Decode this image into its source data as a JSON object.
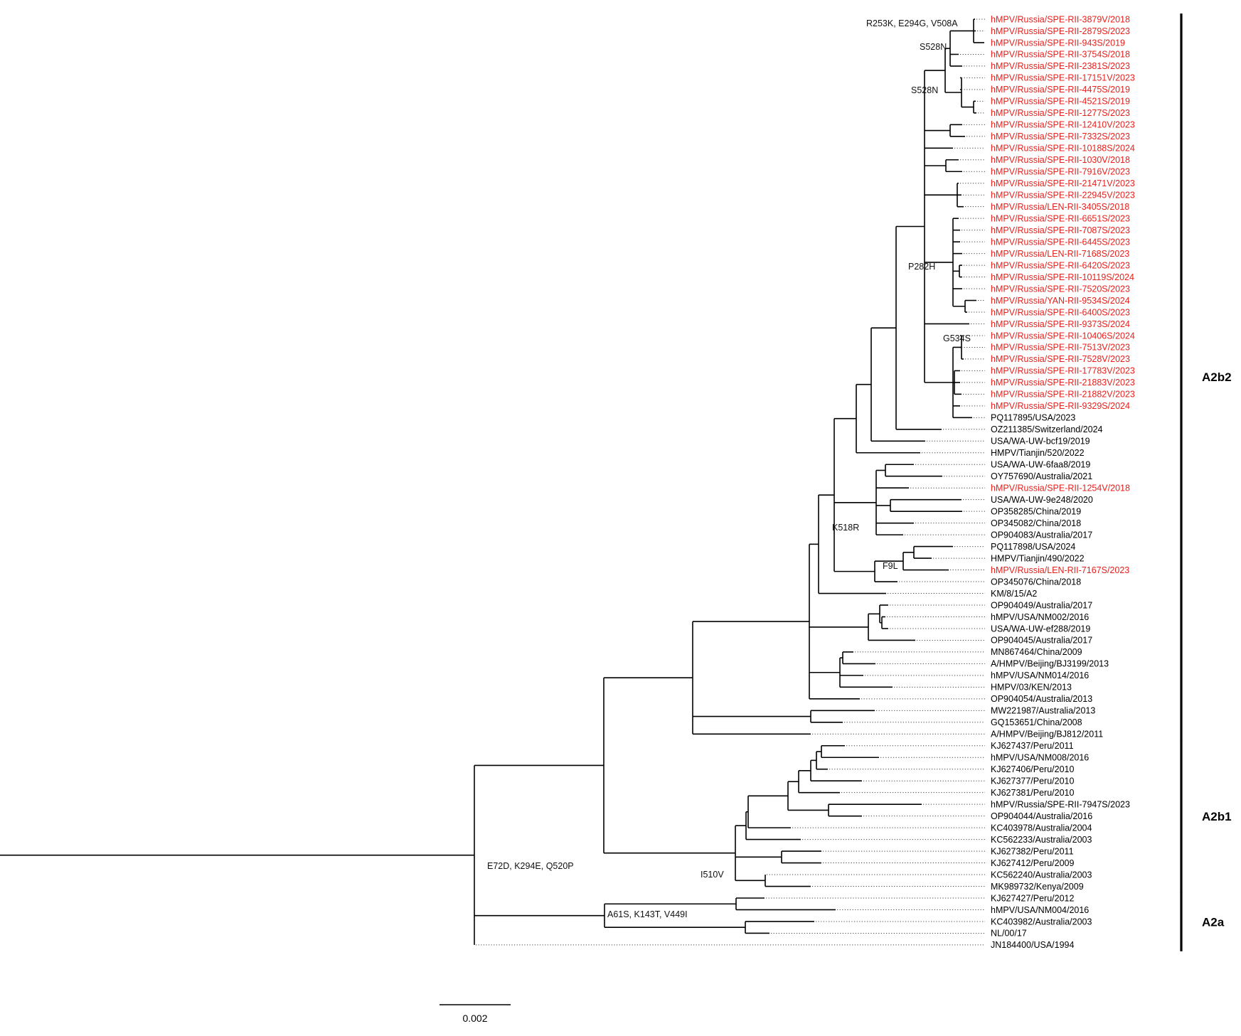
{
  "figure": {
    "type": "phylogenetic_tree",
    "highlight_color": "#e8201c",
    "default_color": "#000000",
    "scale_bar": {
      "value": 0.002,
      "label": "0.002"
    }
  },
  "chart_data": {
    "type": "tree",
    "title": "",
    "scale_bar_label": "0.002",
    "leaves": [
      {
        "label": "hMPV/Russia/SPE-RII-3879V/2018",
        "highlight": true
      },
      {
        "label": "hMPV/Russia/SPE-RII-2879S/2023",
        "highlight": true
      },
      {
        "label": "hMPV/Russia/SPE-RII-943S/2019",
        "highlight": true
      },
      {
        "label": "hMPV/Russia/SPE-RII-3754S/2018",
        "highlight": true
      },
      {
        "label": "hMPV/Russia/SPE-RII-2381S/2023",
        "highlight": true
      },
      {
        "label": "hMPV/Russia/SPE-RII-17151V/2023",
        "highlight": true
      },
      {
        "label": "hMPV/Russia/SPE-RII-4475S/2019",
        "highlight": true
      },
      {
        "label": "hMPV/Russia/SPE-RII-4521S/2019",
        "highlight": true
      },
      {
        "label": "hMPV/Russia/SPE-RII-1277S/2023",
        "highlight": true
      },
      {
        "label": "hMPV/Russia/SPE-RII-12410V/2023",
        "highlight": true
      },
      {
        "label": "hMPV/Russia/SPE-RII-7332S/2023",
        "highlight": true
      },
      {
        "label": "hMPV/Russia/SPE-RII-10188S/2024",
        "highlight": true
      },
      {
        "label": "hMPV/Russia/SPE-RII-1030V/2018",
        "highlight": true
      },
      {
        "label": "hMPV/Russia/SPE-RII-7916V/2023",
        "highlight": true
      },
      {
        "label": "hMPV/Russia/SPE-RII-21471V/2023",
        "highlight": true
      },
      {
        "label": "hMPV/Russia/SPE-RII-22945V/2023",
        "highlight": true
      },
      {
        "label": "hMPV/Russia/LEN-RII-3405S/2018",
        "highlight": true
      },
      {
        "label": "hMPV/Russia/SPE-RII-6651S/2023",
        "highlight": true
      },
      {
        "label": "hMPV/Russia/SPE-RII-7087S/2023",
        "highlight": true
      },
      {
        "label": "hMPV/Russia/SPE-RII-6445S/2023",
        "highlight": true
      },
      {
        "label": "hMPV/Russia/LEN-RII-7168S/2023",
        "highlight": true
      },
      {
        "label": "hMPV/Russia/SPE-RII-6420S/2023",
        "highlight": true
      },
      {
        "label": "hMPV/Russia/SPE-RII-10119S/2024",
        "highlight": true
      },
      {
        "label": "hMPV/Russia/SPE-RII-7520S/2023",
        "highlight": true
      },
      {
        "label": "hMPV/Russia/YAN-RII-9534S/2024",
        "highlight": true
      },
      {
        "label": "hMPV/Russia/SPE-RII-6400S/2023",
        "highlight": true
      },
      {
        "label": "hMPV/Russia/SPE-RII-9373S/2024",
        "highlight": true
      },
      {
        "label": "hMPV/Russia/SPE-RII-10406S/2024",
        "highlight": true
      },
      {
        "label": "hMPV/Russia/SPE-RII-7513V/2023",
        "highlight": true
      },
      {
        "label": "hMPV/Russia/SPE-RII-7528V/2023",
        "highlight": true
      },
      {
        "label": "hMPV/Russia/SPE-RII-17783V/2023",
        "highlight": true
      },
      {
        "label": "hMPV/Russia/SPE-RII-21883V/2023",
        "highlight": true
      },
      {
        "label": "hMPV/Russia/SPE-RII-21882V/2023",
        "highlight": true
      },
      {
        "label": "hMPV/Russia/SPE-RII-9329S/2024",
        "highlight": true
      },
      {
        "label": "PQ117895/USA/2023",
        "highlight": false
      },
      {
        "label": "OZ211385/Switzerland/2024",
        "highlight": false
      },
      {
        "label": "USA/WA-UW-bcf19/2019",
        "highlight": false
      },
      {
        "label": "HMPV/Tianjin/520/2022",
        "highlight": false
      },
      {
        "label": "USA/WA-UW-6faa8/2019",
        "highlight": false
      },
      {
        "label": "OY757690/Australia/2021",
        "highlight": false
      },
      {
        "label": "hMPV/Russia/SPE-RII-1254V/2018",
        "highlight": true
      },
      {
        "label": "USA/WA-UW-9e248/2020",
        "highlight": false
      },
      {
        "label": "OP358285/China/2019",
        "highlight": false
      },
      {
        "label": "OP345082/China/2018",
        "highlight": false
      },
      {
        "label": "OP904083/Australia/2017",
        "highlight": false
      },
      {
        "label": "PQ117898/USA/2024",
        "highlight": false
      },
      {
        "label": "HMPV/Tianjin/490/2022",
        "highlight": false
      },
      {
        "label": "hMPV/Russia/LEN-RII-7167S/2023",
        "highlight": true
      },
      {
        "label": "OP345076/China/2018",
        "highlight": false
      },
      {
        "label": "KM/8/15/A2",
        "highlight": false
      },
      {
        "label": "OP904049/Australia/2017",
        "highlight": false
      },
      {
        "label": "hMPV/USA/NM002/2016",
        "highlight": false
      },
      {
        "label": "USA/WA-UW-ef288/2019",
        "highlight": false
      },
      {
        "label": "OP904045/Australia/2017",
        "highlight": false
      },
      {
        "label": "MN867464/China/2009",
        "highlight": false
      },
      {
        "label": "A/HMPV/Beijing/BJ3199/2013",
        "highlight": false
      },
      {
        "label": "hMPV/USA/NM014/2016",
        "highlight": false
      },
      {
        "label": "HMPV/03/KEN/2013",
        "highlight": false
      },
      {
        "label": "OP904054/Australia/2013",
        "highlight": false
      },
      {
        "label": "MW221987/Australia/2013",
        "highlight": false
      },
      {
        "label": "GQ153651/China/2008",
        "highlight": false
      },
      {
        "label": "A/HMPV/Beijing/BJ812/2011",
        "highlight": false
      },
      {
        "label": "KJ627437/Peru/2011",
        "highlight": false
      },
      {
        "label": "hMPV/USA/NM008/2016",
        "highlight": false
      },
      {
        "label": "KJ627406/Peru/2010",
        "highlight": false
      },
      {
        "label": "KJ627377/Peru/2010",
        "highlight": false
      },
      {
        "label": "KJ627381/Peru/2010",
        "highlight": false
      },
      {
        "label": "hMPV/Russia/SPE-RII-7947S/2023",
        "highlight": false
      },
      {
        "label": "OP904044/Australia/2016",
        "highlight": false
      },
      {
        "label": "KC403978/Australia/2004",
        "highlight": false
      },
      {
        "label": "KC562233/Australia/2003",
        "highlight": false
      },
      {
        "label": "KJ627382/Peru/2011",
        "highlight": false
      },
      {
        "label": "KJ627412/Peru/2009",
        "highlight": false
      },
      {
        "label": "KC562240/Australia/2003",
        "highlight": false
      },
      {
        "label": "MK989732/Kenya/2009",
        "highlight": false
      },
      {
        "label": "KJ627427/Peru/2012",
        "highlight": false
      },
      {
        "label": "hMPV/USA/NM004/2016",
        "highlight": false
      },
      {
        "label": "KC403982/Australia/2003",
        "highlight": false
      },
      {
        "label": "NL/00/17",
        "highlight": false
      },
      {
        "label": "JN184400/USA/1994",
        "highlight": false
      }
    ],
    "clades": [
      {
        "name": "A2b2",
        "first_leaf": 0,
        "last_leaf": 61
      },
      {
        "name": "A2b1",
        "first_leaf": 62,
        "last_leaf": 74
      },
      {
        "name": "A2a",
        "first_leaf": 75,
        "last_leaf": 79
      }
    ],
    "mutations": [
      {
        "label": "R253K, E294G, V508A"
      },
      {
        "label": "S528N"
      },
      {
        "label": "S528N"
      },
      {
        "label": "P282H"
      },
      {
        "label": "G534S"
      },
      {
        "label": "K518R"
      },
      {
        "label": "F9L"
      },
      {
        "label": "E72D, K294E, Q520P"
      },
      {
        "label": "I510V"
      },
      {
        "label": "A61S, K143T, V449I"
      }
    ]
  }
}
